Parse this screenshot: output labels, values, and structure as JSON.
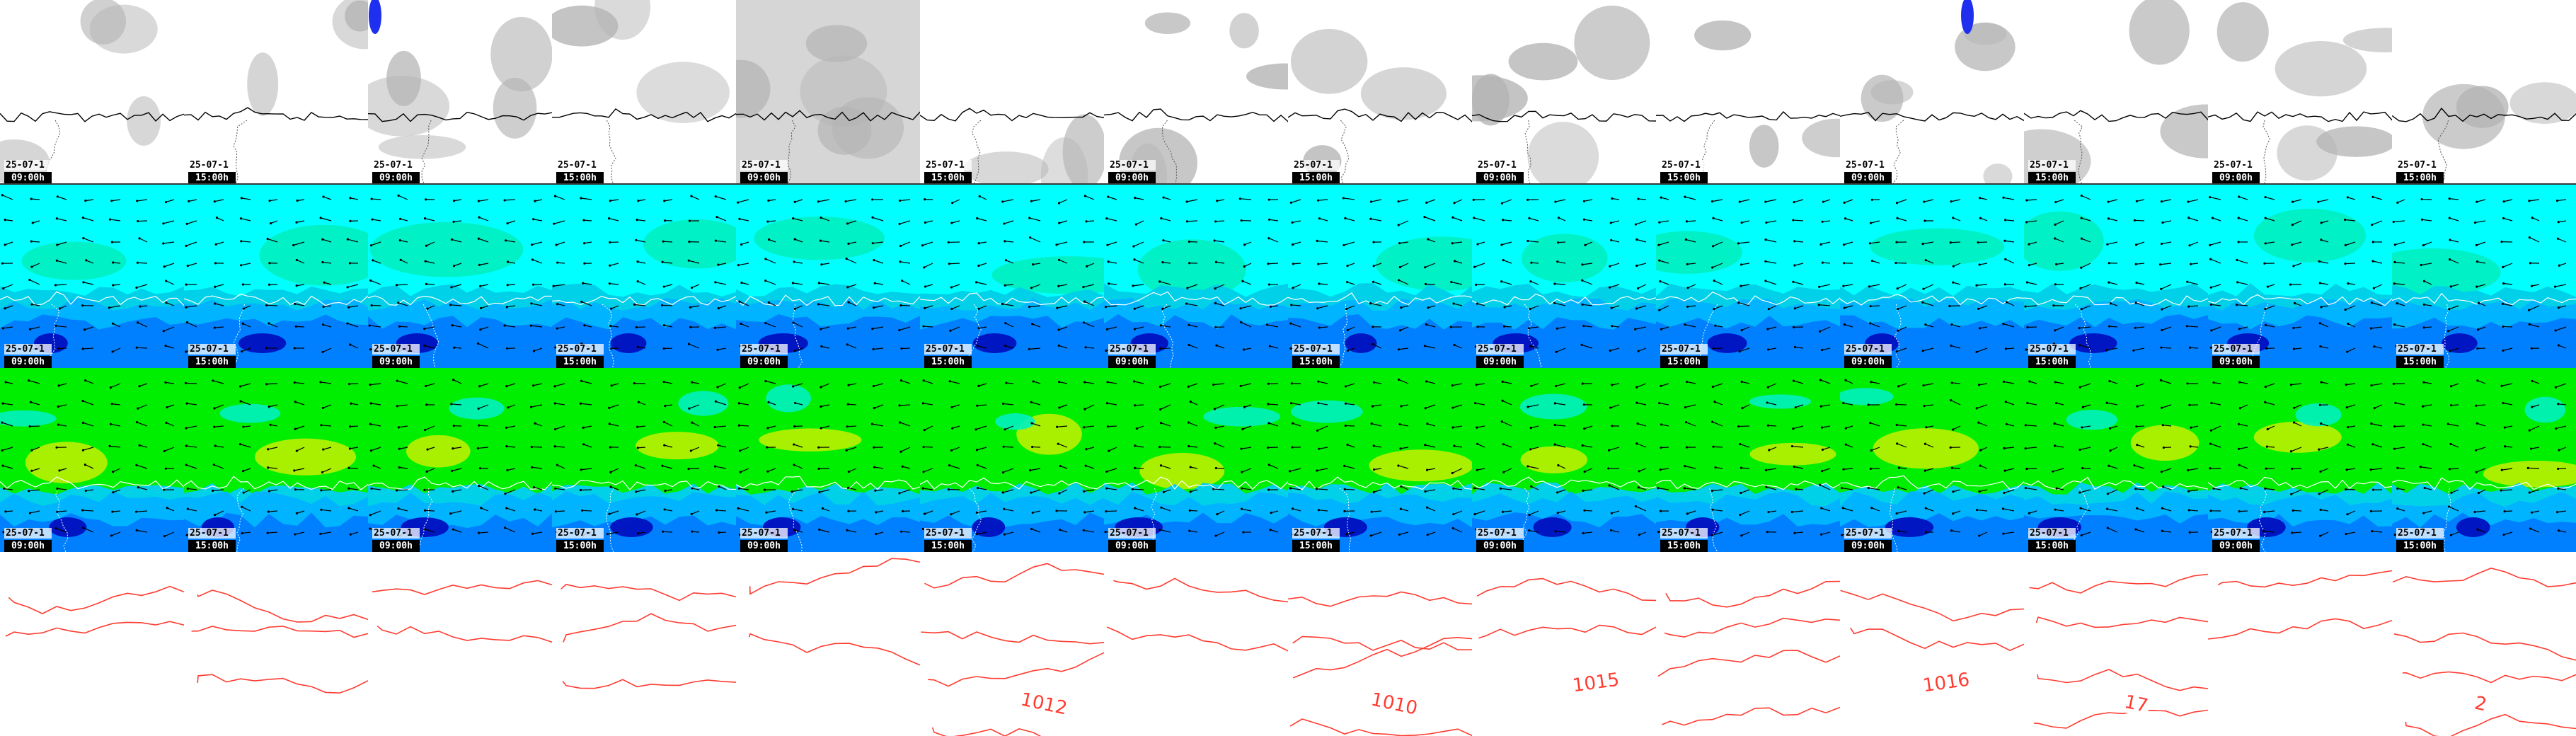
{
  "colors": {
    "cloud_gray": "#b4b4b4",
    "precip_blue": "#1f2ff0",
    "cyan": "#00ffff",
    "aqua_green": "#00f0c0",
    "teal": "#00d0e8",
    "light_blue": "#00b4ff",
    "blue": "#0080ff",
    "mid_blue": "#0050ff",
    "dark_blue": "#0010c0",
    "green": "#00ee00",
    "yellow_green": "#a8f000",
    "yellow": "#e8f000",
    "coast": "#000000",
    "border": "#ffffff",
    "isobar": "#ff3b30",
    "wind_arrow": "#000000"
  },
  "rows": [
    {
      "name": "cloud-cover-row",
      "fields": "cloud"
    },
    {
      "name": "wind-low-level-row",
      "fields": "wind-blue"
    },
    {
      "name": "wind-upper-level-row",
      "fields": "wind-green"
    },
    {
      "name": "pressure-isobar-row",
      "fields": "isobars"
    }
  ],
  "columns": [
    {
      "date": "25-07-1",
      "time": "09:00h"
    },
    {
      "date": "25-07-1",
      "time": "15:00h"
    },
    {
      "date": "25-07-1",
      "time": "09:00h"
    },
    {
      "date": "25-07-1",
      "time": "15:00h"
    },
    {
      "date": "25-07-1",
      "time": "09:00h"
    },
    {
      "date": "25-07-1",
      "time": "15:00h"
    },
    {
      "date": "25-07-1",
      "time": "09:00h"
    },
    {
      "date": "25-07-1",
      "time": "15:00h"
    },
    {
      "date": "25-07-1",
      "time": "09:00h"
    },
    {
      "date": "25-07-1",
      "time": "15:00h"
    },
    {
      "date": "25-07-1",
      "time": "09:00h"
    },
    {
      "date": "25-07-1",
      "time": "15:00h"
    },
    {
      "date": "25-07-1",
      "time": "09:00h"
    },
    {
      "date": "25-07-1",
      "time": "15:00h"
    }
  ],
  "isobar_labels": [
    "1012",
    "1010",
    "1015",
    "1016",
    "17",
    "2"
  ],
  "icons": {
    "wind": "wind-barb-arrow-icon",
    "precip": "precipitation-cell-icon"
  }
}
